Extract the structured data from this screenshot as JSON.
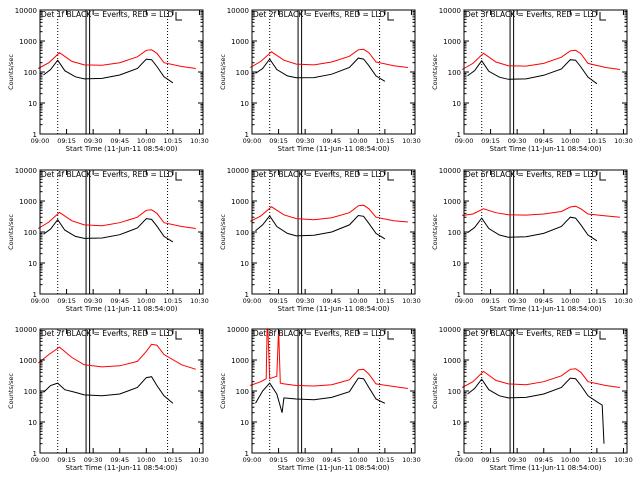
{
  "figure": {
    "colors": {
      "events": "#000000",
      "lld": "#ff0000",
      "background": "#ffffff",
      "frame": "#000000"
    }
  },
  "chart_data": [
    {
      "type": "line",
      "title": "Det 1f BLACK = Events, RED = LLD",
      "xlabel": "Start Time (11-Jun-11 08:54:00)",
      "ylabel": "Counts/sec",
      "y_scale": "log",
      "xlim": [
        "09:00",
        "10:32"
      ],
      "ylim": [
        1,
        10000
      ],
      "x_ticks": [
        "09:00",
        "09:15",
        "09:30",
        "09:45",
        "10:00",
        "10:15",
        "10:30"
      ],
      "y_ticks": [
        "1",
        "10",
        "100",
        "1000",
        "10000"
      ],
      "vertical_lines": {
        "dotted": [
          "09:10",
          "10:12"
        ],
        "solid": [
          "09:26",
          "09:28"
        ]
      },
      "series": [
        {
          "name": "LLD",
          "color": "#ff0000",
          "x": [
            "08:59",
            "09:05",
            "09:11",
            "09:18",
            "09:25",
            "09:35",
            "09:45",
            "09:55",
            "10:00",
            "10:03",
            "10:06",
            "10:10",
            "10:20",
            "10:28"
          ],
          "y": [
            130,
            200,
            420,
            220,
            170,
            165,
            200,
            310,
            500,
            520,
            400,
            200,
            150,
            130
          ]
        },
        {
          "name": "Events",
          "color": "#000000",
          "x": [
            "09:02",
            "09:06",
            "09:10",
            "09:14",
            "09:20",
            "09:25",
            "09:35",
            "09:45",
            "09:55",
            "10:00",
            "10:03",
            "10:06",
            "10:10",
            "10:15"
          ],
          "y": [
            80,
            120,
            240,
            110,
            70,
            60,
            62,
            80,
            130,
            260,
            250,
            150,
            70,
            45
          ]
        }
      ]
    },
    {
      "type": "line",
      "title": "Det 2f BLACK = Events, RED = LLD",
      "xlabel": "Start Time (11-Jun-11 08:54:00)",
      "ylabel": "Counts/sec",
      "y_scale": "log",
      "xlim": [
        "09:00",
        "10:32"
      ],
      "ylim": [
        1,
        10000
      ],
      "x_ticks": [
        "09:00",
        "09:15",
        "09:30",
        "09:45",
        "10:00",
        "10:15",
        "10:30"
      ],
      "y_ticks": [
        "1",
        "10",
        "100",
        "1000",
        "10000"
      ],
      "vertical_lines": {
        "dotted": [
          "09:10",
          "10:12"
        ],
        "solid": [
          "09:26",
          "09:28"
        ]
      },
      "series": [
        {
          "name": "LLD",
          "color": "#ff0000",
          "x": [
            "08:59",
            "09:05",
            "09:11",
            "09:18",
            "09:25",
            "09:35",
            "09:45",
            "09:55",
            "10:00",
            "10:03",
            "10:06",
            "10:10",
            "10:20",
            "10:28"
          ],
          "y": [
            140,
            220,
            450,
            240,
            180,
            170,
            210,
            320,
            520,
            540,
            420,
            210,
            160,
            140
          ]
        },
        {
          "name": "Events",
          "color": "#000000",
          "x": [
            "09:02",
            "09:06",
            "09:10",
            "09:14",
            "09:20",
            "09:25",
            "09:35",
            "09:45",
            "09:55",
            "10:00",
            "10:03",
            "10:06",
            "10:10",
            "10:15"
          ],
          "y": [
            90,
            130,
            260,
            120,
            75,
            65,
            66,
            85,
            140,
            280,
            260,
            160,
            75,
            50
          ]
        }
      ]
    },
    {
      "type": "line",
      "title": "Det 3f BLACK = Events, RED = LLD",
      "xlabel": "Start Time (11-Jun-11 08:54:00)",
      "ylabel": "Counts/sec",
      "y_scale": "log",
      "xlim": [
        "09:00",
        "10:32"
      ],
      "ylim": [
        1,
        10000
      ],
      "x_ticks": [
        "09:00",
        "09:15",
        "09:30",
        "09:45",
        "10:00",
        "10:15",
        "10:30"
      ],
      "y_ticks": [
        "1",
        "10",
        "100",
        "1000",
        "10000"
      ],
      "vertical_lines": {
        "dotted": [
          "09:10",
          "10:12"
        ],
        "solid": [
          "09:26",
          "09:28"
        ]
      },
      "series": [
        {
          "name": "LLD",
          "color": "#ff0000",
          "x": [
            "08:59",
            "09:05",
            "09:11",
            "09:18",
            "09:25",
            "09:35",
            "09:45",
            "09:55",
            "10:00",
            "10:03",
            "10:06",
            "10:10",
            "10:20",
            "10:28"
          ],
          "y": [
            120,
            190,
            400,
            210,
            160,
            155,
            190,
            300,
            480,
            500,
            390,
            190,
            140,
            120
          ]
        },
        {
          "name": "Events",
          "color": "#000000",
          "x": [
            "09:02",
            "09:06",
            "09:10",
            "09:14",
            "09:20",
            "09:25",
            "09:35",
            "09:45",
            "09:55",
            "10:00",
            "10:03",
            "10:06",
            "10:10",
            "10:15"
          ],
          "y": [
            75,
            110,
            230,
            105,
            68,
            58,
            60,
            78,
            125,
            250,
            240,
            145,
            68,
            42
          ]
        }
      ]
    },
    {
      "type": "line",
      "title": "Det 4f BLACK = Events, RED = LLD",
      "xlabel": "Start Time (11-Jun-11 08:54:00)",
      "ylabel": "Counts/sec",
      "y_scale": "log",
      "xlim": [
        "09:00",
        "10:32"
      ],
      "ylim": [
        1,
        10000
      ],
      "x_ticks": [
        "09:00",
        "09:15",
        "09:30",
        "09:45",
        "10:00",
        "10:15",
        "10:30"
      ],
      "y_ticks": [
        "1",
        "10",
        "100",
        "1000",
        "10000"
      ],
      "vertical_lines": {
        "dotted": [
          "09:10",
          "10:12"
        ],
        "solid": [
          "09:26",
          "09:28"
        ]
      },
      "series": [
        {
          "name": "LLD",
          "color": "#ff0000",
          "x": [
            "08:59",
            "09:05",
            "09:11",
            "09:18",
            "09:25",
            "09:35",
            "09:45",
            "09:55",
            "10:00",
            "10:03",
            "10:06",
            "10:10",
            "10:20",
            "10:28"
          ],
          "y": [
            130,
            210,
            430,
            230,
            170,
            160,
            200,
            300,
            500,
            520,
            400,
            200,
            150,
            130
          ]
        },
        {
          "name": "Events",
          "color": "#000000",
          "x": [
            "09:02",
            "09:06",
            "09:10",
            "09:14",
            "09:20",
            "09:25",
            "09:35",
            "09:45",
            "09:55",
            "10:00",
            "10:03",
            "10:06",
            "10:10",
            "10:15"
          ],
          "y": [
            85,
            125,
            250,
            115,
            72,
            62,
            64,
            82,
            135,
            270,
            255,
            155,
            72,
            48
          ]
        }
      ]
    },
    {
      "type": "line",
      "title": "Det 5f BLACK = Events, RED = LLD",
      "xlabel": "Start Time (11-Jun-11 08:54:00)",
      "ylabel": "Counts/sec",
      "y_scale": "log",
      "xlim": [
        "09:00",
        "10:32"
      ],
      "ylim": [
        1,
        10000
      ],
      "x_ticks": [
        "09:00",
        "09:15",
        "09:30",
        "09:45",
        "10:00",
        "10:15",
        "10:30"
      ],
      "y_ticks": [
        "1",
        "10",
        "100",
        "1000",
        "10000"
      ],
      "vertical_lines": {
        "dotted": [
          "09:10",
          "10:12"
        ],
        "solid": [
          "09:26",
          "09:28"
        ]
      },
      "series": [
        {
          "name": "LLD",
          "color": "#ff0000",
          "x": [
            "08:59",
            "09:05",
            "09:11",
            "09:18",
            "09:25",
            "09:35",
            "09:45",
            "09:55",
            "10:00",
            "10:03",
            "10:06",
            "10:10",
            "10:20",
            "10:28"
          ],
          "y": [
            220,
            330,
            650,
            360,
            270,
            250,
            290,
            420,
            700,
            730,
            560,
            300,
            230,
            210
          ]
        },
        {
          "name": "Events",
          "color": "#000000",
          "x": [
            "09:02",
            "09:06",
            "09:10",
            "09:14",
            "09:20",
            "09:25",
            "09:35",
            "09:45",
            "09:55",
            "10:00",
            "10:03",
            "10:06",
            "10:10",
            "10:15"
          ],
          "y": [
            110,
            170,
            330,
            150,
            90,
            75,
            78,
            100,
            170,
            340,
            320,
            190,
            90,
            60
          ]
        }
      ]
    },
    {
      "type": "line",
      "title": "Det 6f BLACK = Events, RED = LLD",
      "xlabel": "Start Time (11-Jun-11 08:54:00)",
      "ylabel": "Counts/sec",
      "y_scale": "log",
      "xlim": [
        "09:00",
        "10:32"
      ],
      "ylim": [
        1,
        10000
      ],
      "x_ticks": [
        "09:00",
        "09:15",
        "09:30",
        "09:45",
        "10:00",
        "10:15",
        "10:30"
      ],
      "y_ticks": [
        "1",
        "10",
        "100",
        "1000",
        "10000"
      ],
      "vertical_lines": {
        "dotted": [
          "09:10",
          "10:12"
        ],
        "solid": [
          "09:26",
          "09:28"
        ]
      },
      "series": [
        {
          "name": "LLD",
          "color": "#ff0000",
          "x": [
            "08:59",
            "09:05",
            "09:11",
            "09:18",
            "09:25",
            "09:35",
            "09:45",
            "09:55",
            "10:00",
            "10:03",
            "10:06",
            "10:10",
            "10:20",
            "10:28"
          ],
          "y": [
            340,
            380,
            560,
            420,
            360,
            350,
            380,
            460,
            640,
            680,
            560,
            380,
            330,
            300
          ]
        },
        {
          "name": "Events",
          "color": "#000000",
          "x": [
            "09:02",
            "09:06",
            "09:10",
            "09:14",
            "09:20",
            "09:25",
            "09:35",
            "09:45",
            "09:55",
            "10:00",
            "10:03",
            "10:06",
            "10:10",
            "10:15"
          ],
          "y": [
            95,
            140,
            280,
            130,
            80,
            68,
            70,
            90,
            150,
            300,
            280,
            170,
            80,
            52
          ]
        }
      ]
    },
    {
      "type": "line",
      "title": "Det 7f BLACK = Events, RED = LLD",
      "xlabel": "Start Time (11-Jun-11 08:54:00)",
      "ylabel": "Counts/sec",
      "y_scale": "log",
      "xlim": [
        "09:00",
        "10:32"
      ],
      "ylim": [
        1,
        10000
      ],
      "x_ticks": [
        "09:00",
        "09:15",
        "09:30",
        "09:45",
        "10:00",
        "10:15",
        "10:30"
      ],
      "y_ticks": [
        "1",
        "10",
        "100",
        "1000",
        "10000"
      ],
      "vertical_lines": {
        "dotted": [
          "09:10",
          "10:12"
        ],
        "solid": [
          "09:26",
          "09:28"
        ]
      },
      "series": [
        {
          "name": "LLD",
          "color": "#ff0000",
          "x": [
            "08:59",
            "09:05",
            "09:11",
            "09:18",
            "09:25",
            "09:35",
            "09:45",
            "09:55",
            "10:00",
            "10:03",
            "10:06",
            "10:10",
            "10:20",
            "10:28"
          ],
          "y": [
            800,
            1500,
            2600,
            1200,
            700,
            600,
            650,
            900,
            1900,
            3200,
            3000,
            1500,
            700,
            500
          ]
        },
        {
          "name": "Events",
          "color": "#000000",
          "x": [
            "09:02",
            "09:06",
            "09:10",
            "09:14",
            "09:20",
            "09:25",
            "09:35",
            "09:45",
            "09:55",
            "10:00",
            "10:03",
            "10:06",
            "10:10",
            "10:15"
          ],
          "y": [
            90,
            150,
            180,
            110,
            90,
            75,
            70,
            80,
            130,
            270,
            290,
            150,
            70,
            40
          ]
        }
      ]
    },
    {
      "type": "line",
      "title": "Det 8f BLACK = Events, RED = LLD",
      "xlabel": "Start Time (11-Jun-11 08:54:00)",
      "ylabel": "Counts/sec",
      "y_scale": "log",
      "xlim": [
        "09:00",
        "10:32"
      ],
      "ylim": [
        1,
        10000
      ],
      "x_ticks": [
        "09:00",
        "09:15",
        "09:30",
        "09:45",
        "10:00",
        "10:15",
        "10:30"
      ],
      "y_ticks": [
        "1",
        "10",
        "100",
        "1000",
        "10000"
      ],
      "vertical_lines": {
        "dotted": [
          "09:10",
          "10:12"
        ],
        "solid": [
          "09:26",
          "09:28"
        ]
      },
      "series": [
        {
          "name": "LLD",
          "color": "#ff0000",
          "x": [
            "08:59",
            "09:05",
            "09:08",
            "09:08.5",
            "09:09",
            "09:10",
            "09:14",
            "09:15",
            "09:16",
            "09:18",
            "09:25",
            "09:35",
            "09:45",
            "09:55",
            "10:00",
            "10:03",
            "10:06",
            "10:10",
            "10:20",
            "10:28"
          ],
          "y": [
            150,
            200,
            250,
            10000,
            10000,
            250,
            300,
            10000,
            180,
            170,
            150,
            145,
            160,
            230,
            480,
            500,
            350,
            170,
            140,
            120
          ]
        },
        {
          "name": "Events",
          "color": "#000000",
          "x": [
            "09:02",
            "09:06",
            "09:10",
            "09:14",
            "09:17",
            "09:18",
            "09:25",
            "09:35",
            "09:45",
            "09:55",
            "10:00",
            "10:03",
            "10:06",
            "10:10",
            "10:15"
          ],
          "y": [
            40,
            100,
            180,
            80,
            20,
            60,
            55,
            52,
            62,
            95,
            260,
            250,
            130,
            55,
            40
          ]
        }
      ]
    },
    {
      "type": "line",
      "title": "Det 9f BLACK = Events, RED = LLD",
      "xlabel": "Start Time (11-Jun-11 08:54:00)",
      "ylabel": "Counts/sec",
      "y_scale": "log",
      "xlim": [
        "09:00",
        "10:32"
      ],
      "ylim": [
        1,
        10000
      ],
      "x_ticks": [
        "09:00",
        "09:15",
        "09:30",
        "09:45",
        "10:00",
        "10:15",
        "10:30"
      ],
      "y_ticks": [
        "1",
        "10",
        "100",
        "1000",
        "10000"
      ],
      "vertical_lines": {
        "dotted": [
          "09:10",
          "10:12"
        ],
        "solid": [
          "09:26",
          "09:28"
        ]
      },
      "series": [
        {
          "name": "LLD",
          "color": "#ff0000",
          "x": [
            "08:59",
            "09:05",
            "09:11",
            "09:18",
            "09:25",
            "09:35",
            "09:45",
            "09:55",
            "10:00",
            "10:03",
            "10:06",
            "10:10",
            "10:20",
            "10:28"
          ],
          "y": [
            130,
            200,
            430,
            220,
            170,
            160,
            200,
            310,
            500,
            520,
            400,
            200,
            150,
            130
          ]
        },
        {
          "name": "Events",
          "color": "#000000",
          "x": [
            "09:02",
            "09:06",
            "09:10",
            "09:14",
            "09:20",
            "09:25",
            "09:35",
            "09:45",
            "09:55",
            "10:00",
            "10:03",
            "10:06",
            "10:10",
            "10:15",
            "10:18",
            "10:19"
          ],
          "y": [
            80,
            120,
            240,
            110,
            70,
            60,
            62,
            80,
            130,
            260,
            250,
            150,
            70,
            45,
            35,
            2
          ]
        }
      ]
    }
  ]
}
